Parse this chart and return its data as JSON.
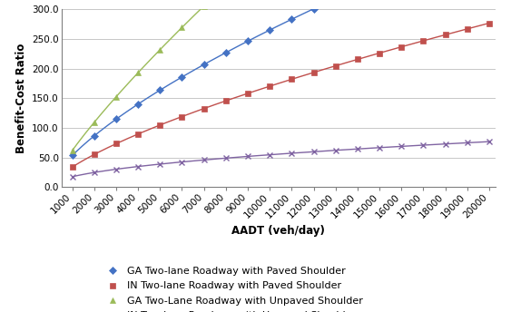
{
  "xmin": 1000,
  "xmax": 20000,
  "ymin": 0.0,
  "ymax": 300.0,
  "yticks": [
    0.0,
    50.0,
    100.0,
    150.0,
    200.0,
    250.0,
    300.0
  ],
  "xticks": [
    1000,
    2000,
    3000,
    4000,
    5000,
    6000,
    7000,
    8000,
    9000,
    10000,
    11000,
    12000,
    13000,
    14000,
    15000,
    16000,
    17000,
    18000,
    19000,
    20000
  ],
  "xlabel": "AADT (veh/day)",
  "ylabel": "Benefit-Cost Ratio",
  "lines": [
    {
      "label": "GA Two-lane Roadway with Paved Shoulder",
      "color": "#4472C4",
      "marker": "D",
      "a": 0.44,
      "b": 0.695
    },
    {
      "label": "IN Two-lane Roadway with Paved Shoulder",
      "color": "#C0504D",
      "marker": "s",
      "a": 0.27,
      "b": 0.7
    },
    {
      "label": "GA Two-Lane Roadway with Unpaved Shoulder",
      "color": "#9BBB59",
      "marker": "^",
      "a": 0.215,
      "b": 0.82
    },
    {
      "label": "IN Two-lane Roadway with Unpaved Shoulder",
      "color": "#8064A2",
      "marker": "x",
      "a": 0.6,
      "b": 0.49
    }
  ],
  "bg_color": "#FFFFFF",
  "grid_color": "#BEBEBE",
  "axis_fontsize": 8.5,
  "legend_fontsize": 8,
  "tick_fontsize": 7.5
}
